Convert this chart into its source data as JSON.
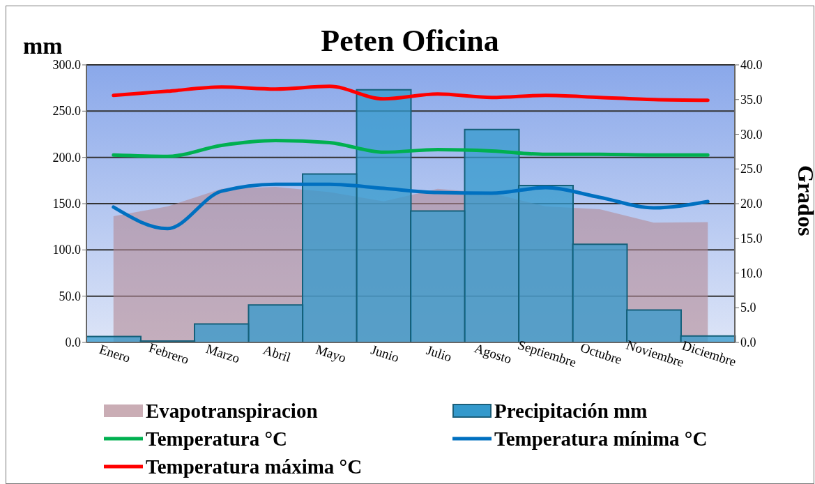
{
  "chart_data": {
    "type": "bar",
    "title": "Peten Oficina",
    "ylabel": "mm",
    "y2label": "Grados",
    "categories": [
      "Enero",
      "Febrero",
      "Marzo",
      "Abril",
      "Mayo",
      "Junio",
      "Julio",
      "Agosto",
      "Septiembre",
      "Octubre",
      "Noviembre",
      "Diciembre"
    ],
    "series": [
      {
        "name": "Evapotranspiracion",
        "type": "area",
        "color": "#b48a96",
        "values": [
          136.5,
          146.9,
          166,
          168,
          162.5,
          152.4,
          166,
          161.4,
          146.9,
          144,
          129.5,
          130
        ]
      },
      {
        "name": "Precipitación mm",
        "color": "#3399cc",
        "values": [
          6.5,
          1.5,
          20,
          40.6,
          182,
          273,
          142,
          230,
          169.6,
          106,
          35,
          7
        ]
      },
      {
        "name": "Temperatura °C",
        "type": "line",
        "color": "#00b050",
        "axis": "y2",
        "values": [
          27,
          26.8,
          28.4,
          29.1,
          28.8,
          27.4,
          27.8,
          27.6,
          27.1,
          27.1,
          27,
          27
        ]
      },
      {
        "name": "Temperatura mínima °C",
        "type": "line",
        "color": "#0070c0",
        "axis": "y2",
        "values": [
          19.5,
          16.4,
          21.8,
          22.8,
          22.8,
          22.2,
          21.6,
          21.5,
          22.3,
          20.9,
          19.4,
          20.3
        ]
      },
      {
        "name": "Temperatura máxima °C",
        "type": "line",
        "color": "#ff0000",
        "axis": "y2",
        "values": [
          35.6,
          36.2,
          36.8,
          36.5,
          36.9,
          35.1,
          35.8,
          35.3,
          35.6,
          35.3,
          35,
          34.9
        ]
      }
    ],
    "ylim": [
      0,
      300
    ],
    "yticks": [
      {
        "value": 0,
        "label": "0.0"
      },
      {
        "value": 50,
        "label": "50.0"
      },
      {
        "value": 100,
        "label": "100.0"
      },
      {
        "value": 150,
        "label": "150.0"
      },
      {
        "value": 200,
        "label": "200.0"
      },
      {
        "value": 250,
        "label": "250.0"
      },
      {
        "value": 300,
        "label": "300.0"
      }
    ],
    "y2lim": [
      0,
      40
    ],
    "y2ticks": [
      {
        "value": 0,
        "label": "0.0"
      },
      {
        "value": 5,
        "label": "5.0"
      },
      {
        "value": 10,
        "label": "10.0"
      },
      {
        "value": 15,
        "label": "15.0"
      },
      {
        "value": 20,
        "label": "20.0"
      },
      {
        "value": 25,
        "label": "25.0"
      },
      {
        "value": 30,
        "label": "30.0"
      },
      {
        "value": 35,
        "label": "35.0"
      },
      {
        "value": 40,
        "label": "40.0"
      }
    ],
    "grid": "y",
    "legend": "bottom",
    "marker": "none",
    "line_style": "solid"
  }
}
